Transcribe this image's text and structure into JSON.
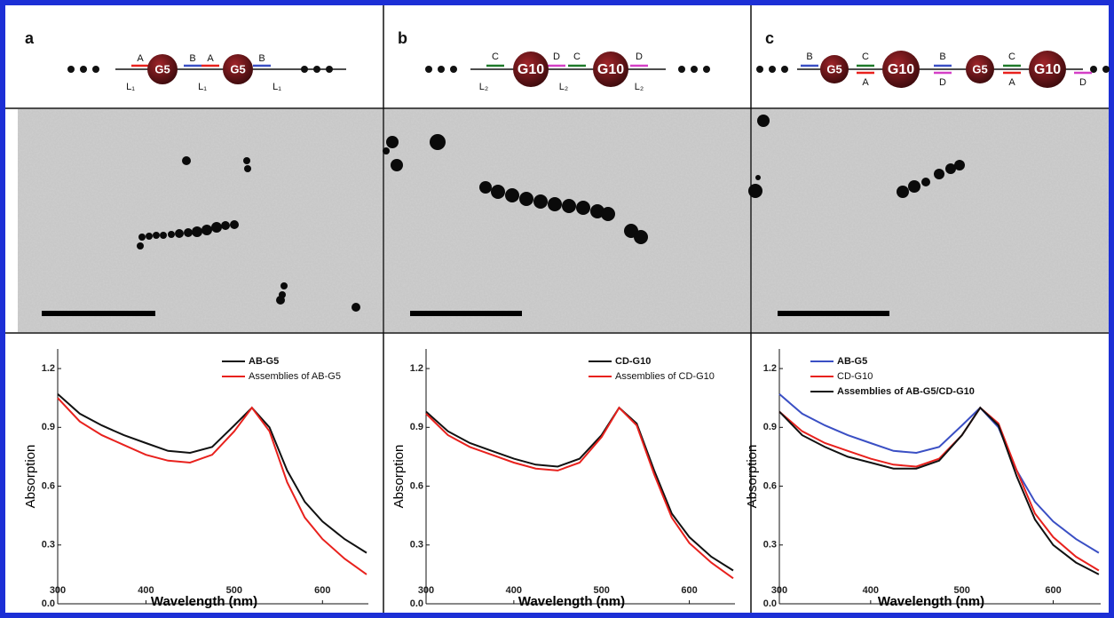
{
  "panels": [
    {
      "label": "a",
      "particles": [
        "G5",
        "G5"
      ],
      "top": [
        "A",
        "B",
        "A",
        "B"
      ],
      "bottom": [
        "L₁",
        "L₁",
        "L₁"
      ]
    },
    {
      "label": "b",
      "particles": [
        "G10",
        "G10"
      ],
      "top": [
        "C",
        "D",
        "C",
        "D"
      ],
      "bottom": [
        "L₂",
        "L₂",
        "L₂"
      ]
    },
    {
      "label": "c",
      "particles": [
        "G5",
        "G10",
        "G5",
        "G10"
      ],
      "top": [
        "B",
        "C",
        "B",
        "C"
      ],
      "bottom": [
        "A",
        "D",
        "A",
        "D"
      ]
    }
  ],
  "chart_data": [
    {
      "type": "line",
      "x_label": "Wavelength (nm)",
      "y_label": "Absorption",
      "x": [
        300,
        325,
        350,
        375,
        400,
        425,
        450,
        475,
        500,
        520,
        540,
        560,
        580,
        600,
        625,
        650
      ],
      "xlim": [
        300,
        652
      ],
      "ylim": [
        0,
        1.3
      ],
      "xticks": [
        300,
        400,
        500,
        600
      ],
      "yticks": [
        {
          "value": 0,
          "label": "0.0"
        },
        0.3,
        0.6,
        0.9,
        1.2
      ],
      "legend": "upper right",
      "series": [
        {
          "name": "AB-G5",
          "color": "#111111",
          "values": [
            1.07,
            0.97,
            0.91,
            0.86,
            0.82,
            0.78,
            0.77,
            0.8,
            0.91,
            1.0,
            0.9,
            0.68,
            0.52,
            0.42,
            0.33,
            0.26
          ]
        },
        {
          "name": "Assemblies of AB-G5",
          "color": "#e8211d",
          "values": [
            1.05,
            0.93,
            0.86,
            0.81,
            0.76,
            0.73,
            0.72,
            0.76,
            0.88,
            1.0,
            0.88,
            0.62,
            0.44,
            0.33,
            0.23,
            0.15
          ]
        }
      ]
    },
    {
      "type": "line",
      "x_label": "Wavelength (nm)",
      "y_label": "Absorption",
      "x": [
        300,
        325,
        350,
        375,
        400,
        425,
        450,
        475,
        500,
        520,
        540,
        560,
        580,
        600,
        625,
        650
      ],
      "xlim": [
        300,
        652
      ],
      "ylim": [
        0,
        1.3
      ],
      "xticks": [
        300,
        400,
        500,
        600
      ],
      "yticks": [
        {
          "value": 0,
          "label": "0.0"
        },
        0.3,
        0.6,
        0.9,
        1.2
      ],
      "legend": "upper right",
      "series": [
        {
          "name": "CD-G10",
          "color": "#111111",
          "values": [
            0.98,
            0.88,
            0.82,
            0.78,
            0.74,
            0.71,
            0.7,
            0.74,
            0.86,
            1.0,
            0.92,
            0.68,
            0.46,
            0.34,
            0.24,
            0.17
          ]
        },
        {
          "name": "Assemblies of CD-G10",
          "color": "#e8211d",
          "values": [
            0.97,
            0.86,
            0.8,
            0.76,
            0.72,
            0.69,
            0.68,
            0.72,
            0.85,
            1.0,
            0.91,
            0.66,
            0.44,
            0.31,
            0.21,
            0.13
          ]
        }
      ]
    },
    {
      "type": "line",
      "x_label": "Wavelength (nm)",
      "y_label": "Absorption",
      "x": [
        300,
        325,
        350,
        375,
        400,
        425,
        450,
        475,
        500,
        520,
        540,
        560,
        580,
        600,
        625,
        650
      ],
      "xlim": [
        300,
        652
      ],
      "ylim": [
        0,
        1.3
      ],
      "xticks": [
        300,
        400,
        500,
        600
      ],
      "yticks": [
        {
          "value": 0,
          "label": "0.0"
        },
        0.3,
        0.6,
        0.9,
        1.2
      ],
      "legend": "upper left",
      "series": [
        {
          "name": "AB-G5",
          "color": "#3a4fc4",
          "values": [
            1.07,
            0.97,
            0.91,
            0.86,
            0.82,
            0.78,
            0.77,
            0.8,
            0.91,
            1.0,
            0.9,
            0.68,
            0.52,
            0.42,
            0.33,
            0.26
          ]
        },
        {
          "name": "CD-G10",
          "color": "#e8211d",
          "values": [
            0.98,
            0.88,
            0.82,
            0.78,
            0.74,
            0.71,
            0.7,
            0.74,
            0.86,
            1.0,
            0.92,
            0.68,
            0.46,
            0.34,
            0.24,
            0.17
          ]
        },
        {
          "name": "Assemblies of AB-G5/CD-G10",
          "color": "#111111",
          "values": [
            0.98,
            0.86,
            0.8,
            0.75,
            0.72,
            0.69,
            0.69,
            0.73,
            0.86,
            1.0,
            0.91,
            0.65,
            0.43,
            0.3,
            0.21,
            0.15
          ]
        }
      ]
    }
  ]
}
